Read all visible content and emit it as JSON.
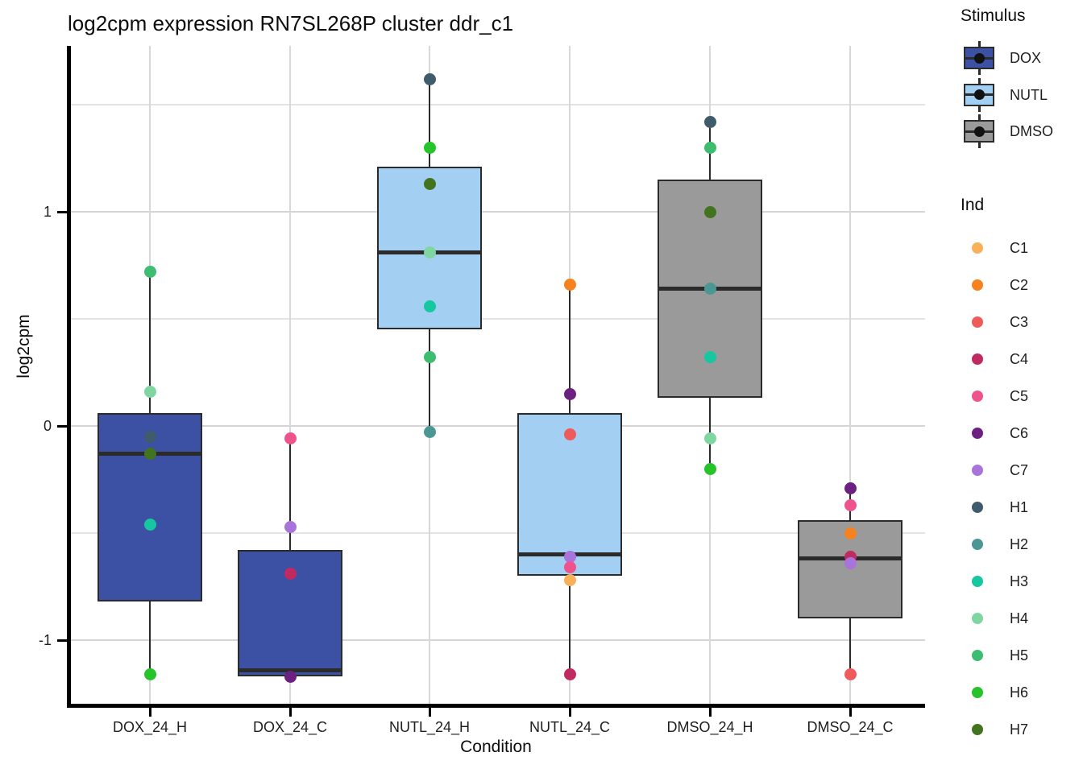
{
  "chart_data": {
    "type": "boxplot",
    "title": "log2cpm expression RN7SL268P cluster ddr_c1",
    "xlabel": "Condition",
    "ylabel": "log2cpm",
    "categories": [
      "DOX_24_H",
      "DOX_24_C",
      "NUTL_24_H",
      "NUTL_24_C",
      "DMSO_24_H",
      "DMSO_24_C"
    ],
    "yticks": [
      1,
      0,
      -1
    ],
    "minor_yticks": [
      1.5,
      0.5,
      -0.5
    ],
    "ylim": [
      -1.31,
      1.77
    ],
    "legend_position": "right",
    "grid": "horizontal major and minor lines, vertical major line at each category",
    "boxes": [
      {
        "category": "DOX_24_H",
        "stimulus": "DOX",
        "q1": -0.82,
        "median": -0.13,
        "q3": 0.06,
        "whisker_low": -1.16,
        "whisker_high": 0.72,
        "points": [
          {
            "ind": "H5",
            "value": 0.72
          },
          {
            "ind": "H4",
            "value": 0.16
          },
          {
            "ind": "H1",
            "value": -0.05
          },
          {
            "ind": "H7",
            "value": -0.13
          },
          {
            "ind": "H3",
            "value": -0.46
          },
          {
            "ind": "H6",
            "value": -1.16
          }
        ]
      },
      {
        "category": "DOX_24_C",
        "stimulus": "DOX",
        "q1": -1.17,
        "median": -1.14,
        "q3": -0.58,
        "whisker_low": -1.17,
        "whisker_high": -0.06,
        "points": [
          {
            "ind": "C5",
            "value": -0.06
          },
          {
            "ind": "C7",
            "value": -0.47
          },
          {
            "ind": "C4",
            "value": -0.69
          },
          {
            "ind": "C6",
            "value": -1.17
          }
        ]
      },
      {
        "category": "NUTL_24_H",
        "stimulus": "NUTL",
        "q1": 0.45,
        "median": 0.81,
        "q3": 1.21,
        "whisker_low": -0.03,
        "whisker_high": 1.62,
        "points": [
          {
            "ind": "H1",
            "value": 1.62
          },
          {
            "ind": "H6",
            "value": 1.3
          },
          {
            "ind": "H7",
            "value": 1.13
          },
          {
            "ind": "H4",
            "value": 0.81
          },
          {
            "ind": "H3",
            "value": 0.56
          },
          {
            "ind": "H5",
            "value": 0.32
          },
          {
            "ind": "H2",
            "value": -0.03
          }
        ]
      },
      {
        "category": "NUTL_24_C",
        "stimulus": "NUTL",
        "q1": -0.7,
        "median": -0.6,
        "q3": 0.06,
        "whisker_low": -1.16,
        "whisker_high": 0.66,
        "points": [
          {
            "ind": "C2",
            "value": 0.66
          },
          {
            "ind": "C6",
            "value": 0.15
          },
          {
            "ind": "C3",
            "value": -0.04
          },
          {
            "ind": "C7",
            "value": -0.61
          },
          {
            "ind": "C5",
            "value": -0.66
          },
          {
            "ind": "C1",
            "value": -0.72
          },
          {
            "ind": "C4",
            "value": -1.16
          }
        ]
      },
      {
        "category": "DMSO_24_H",
        "stimulus": "DMSO",
        "q1": 0.13,
        "median": 0.64,
        "q3": 1.15,
        "whisker_low": -0.2,
        "whisker_high": 1.42,
        "points": [
          {
            "ind": "H1",
            "value": 1.42
          },
          {
            "ind": "H5",
            "value": 1.3
          },
          {
            "ind": "H7",
            "value": 1.0
          },
          {
            "ind": "H2",
            "value": 0.64
          },
          {
            "ind": "H3",
            "value": 0.32
          },
          {
            "ind": "H4",
            "value": -0.06
          },
          {
            "ind": "H6",
            "value": -0.2
          }
        ]
      },
      {
        "category": "DMSO_24_C",
        "stimulus": "DMSO",
        "q1": -0.9,
        "median": -0.62,
        "q3": -0.44,
        "whisker_low": -1.16,
        "whisker_high": -0.29,
        "points": [
          {
            "ind": "C6",
            "value": -0.29
          },
          {
            "ind": "C5",
            "value": -0.37
          },
          {
            "ind": "C2",
            "value": -0.5
          },
          {
            "ind": "C4",
            "value": -0.61
          },
          {
            "ind": "C7",
            "value": -0.64
          },
          {
            "ind": "C3",
            "value": -1.16
          }
        ]
      }
    ]
  },
  "legend": {
    "stimulus": {
      "title": "Stimulus",
      "items": [
        {
          "label": "DOX",
          "color": "#3C51A3"
        },
        {
          "label": "NUTL",
          "color": "#A3CFF2"
        },
        {
          "label": "DMSO",
          "color": "#9A9A9A"
        }
      ]
    },
    "ind": {
      "title": "Ind",
      "items": [
        {
          "label": "C1",
          "color": "#F8B05A"
        },
        {
          "label": "C2",
          "color": "#F5821F"
        },
        {
          "label": "C3",
          "color": "#EF5B5B"
        },
        {
          "label": "C4",
          "color": "#C02A61"
        },
        {
          "label": "C5",
          "color": "#EF538B"
        },
        {
          "label": "C6",
          "color": "#6C2181"
        },
        {
          "label": "C7",
          "color": "#A873DB"
        },
        {
          "label": "H1",
          "color": "#3E5C6B"
        },
        {
          "label": "H2",
          "color": "#4A9793"
        },
        {
          "label": "H3",
          "color": "#16C7A0"
        },
        {
          "label": "H4",
          "color": "#80D6A0"
        },
        {
          "label": "H5",
          "color": "#3EBD70"
        },
        {
          "label": "H6",
          "color": "#27C32A"
        },
        {
          "label": "H7",
          "color": "#42741F"
        }
      ]
    }
  },
  "style": {
    "box_border_color": "#2B2B2B",
    "median_color": "#2B2B2B",
    "whisker_color": "#2B2B2B",
    "axis_color": "#000000",
    "major_grid_color": "#D5D5D5",
    "minor_grid_color": "#E3E3E3",
    "vertical_grid_color": "#D8D8D8"
  }
}
